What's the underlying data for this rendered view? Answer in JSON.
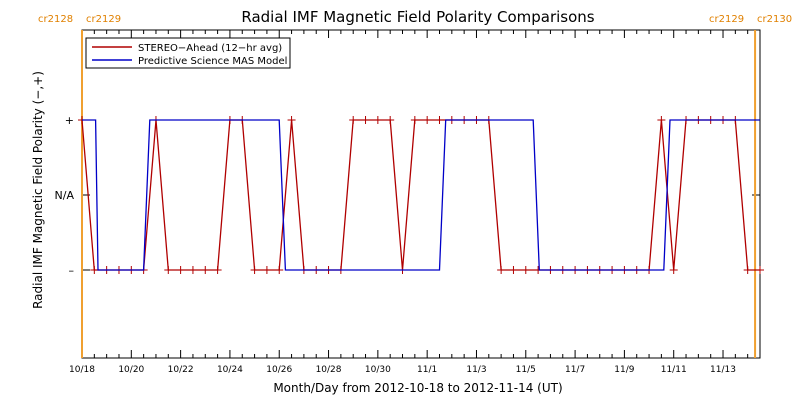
{
  "chart_data": {
    "type": "line",
    "title": "Radial IMF Magnetic Field Polarity Comparisons",
    "xlabel": "Month/Day from 2012-10-18 to 2012-11-14 (UT)",
    "ylabel": "Radial IMF Magnetic Field Polarity (−,+)",
    "x_unit": "days since 2012-10-18 00:00 UT",
    "xlim": [
      0,
      27.5
    ],
    "x_tick_labels": [
      "10/18",
      "10/20",
      "10/22",
      "10/24",
      "10/26",
      "10/28",
      "10/30",
      "11/1",
      "11/3",
      "11/5",
      "11/7",
      "11/9",
      "11/11",
      "11/13"
    ],
    "y_categories": [
      "−",
      "N/A",
      "+"
    ],
    "y_tick_labels": [
      "+",
      "N/A",
      "–"
    ],
    "legend": {
      "position": "top-left",
      "entries": [
        "STEREO−Ahead (12−hr avg)",
        "Predictive Science MAS Model"
      ]
    },
    "carrington_markers": [
      {
        "x": 0.0,
        "left_label": "cr2128",
        "right_label": "cr2129"
      },
      {
        "x": 27.3,
        "left_label": "cr2129",
        "right_label": "cr2130"
      }
    ],
    "series": [
      {
        "name": "STEREO−Ahead (12−hr avg)",
        "color": "#b00000",
        "marker": "plus",
        "x": [
          0.0,
          0.5,
          1.0,
          1.5,
          2.0,
          2.5,
          3.0,
          3.5,
          4.0,
          4.5,
          5.0,
          5.5,
          6.0,
          6.5,
          7.0,
          7.5,
          8.0,
          8.5,
          9.0,
          9.5,
          10.0,
          10.5,
          11.0,
          11.5,
          12.0,
          12.5,
          13.0,
          13.5,
          14.0,
          14.5,
          15.0,
          15.5,
          16.0,
          16.5,
          17.0,
          17.5,
          18.0,
          18.5,
          19.0,
          19.5,
          20.0,
          20.5,
          21.0,
          21.5,
          22.0,
          22.5,
          23.0,
          23.5,
          24.0,
          24.5,
          25.0,
          25.5,
          26.0,
          26.5,
          27.0,
          27.5
        ],
        "values": [
          "+",
          "−",
          "−",
          "−",
          "−",
          "−",
          "+",
          "−",
          "−",
          "−",
          "−",
          "−",
          "+",
          "+",
          "−",
          "−",
          "−",
          "+",
          "−",
          "−",
          "−",
          "−",
          "+",
          "+",
          "+",
          "+",
          "−",
          "+",
          "+",
          "+",
          "+",
          "+",
          "+",
          "+",
          "−",
          "−",
          "−",
          "−",
          "−",
          "−",
          "−",
          "−",
          "−",
          "−",
          "−",
          "−",
          "−",
          "+",
          "−",
          "+",
          "+",
          "+",
          "+",
          "+",
          "−",
          "−"
        ]
      },
      {
        "name": "Predictive Science MAS Model",
        "color": "#0000c8",
        "marker": "none",
        "x": [
          0.0,
          0.55,
          0.65,
          2.5,
          2.75,
          8.0,
          8.25,
          14.5,
          14.75,
          18.3,
          18.55,
          23.6,
          23.85,
          27.5
        ],
        "values": [
          "+",
          "+",
          "−",
          "−",
          "+",
          "+",
          "−",
          "−",
          "+",
          "+",
          "−",
          "−",
          "+",
          "+"
        ]
      }
    ]
  }
}
